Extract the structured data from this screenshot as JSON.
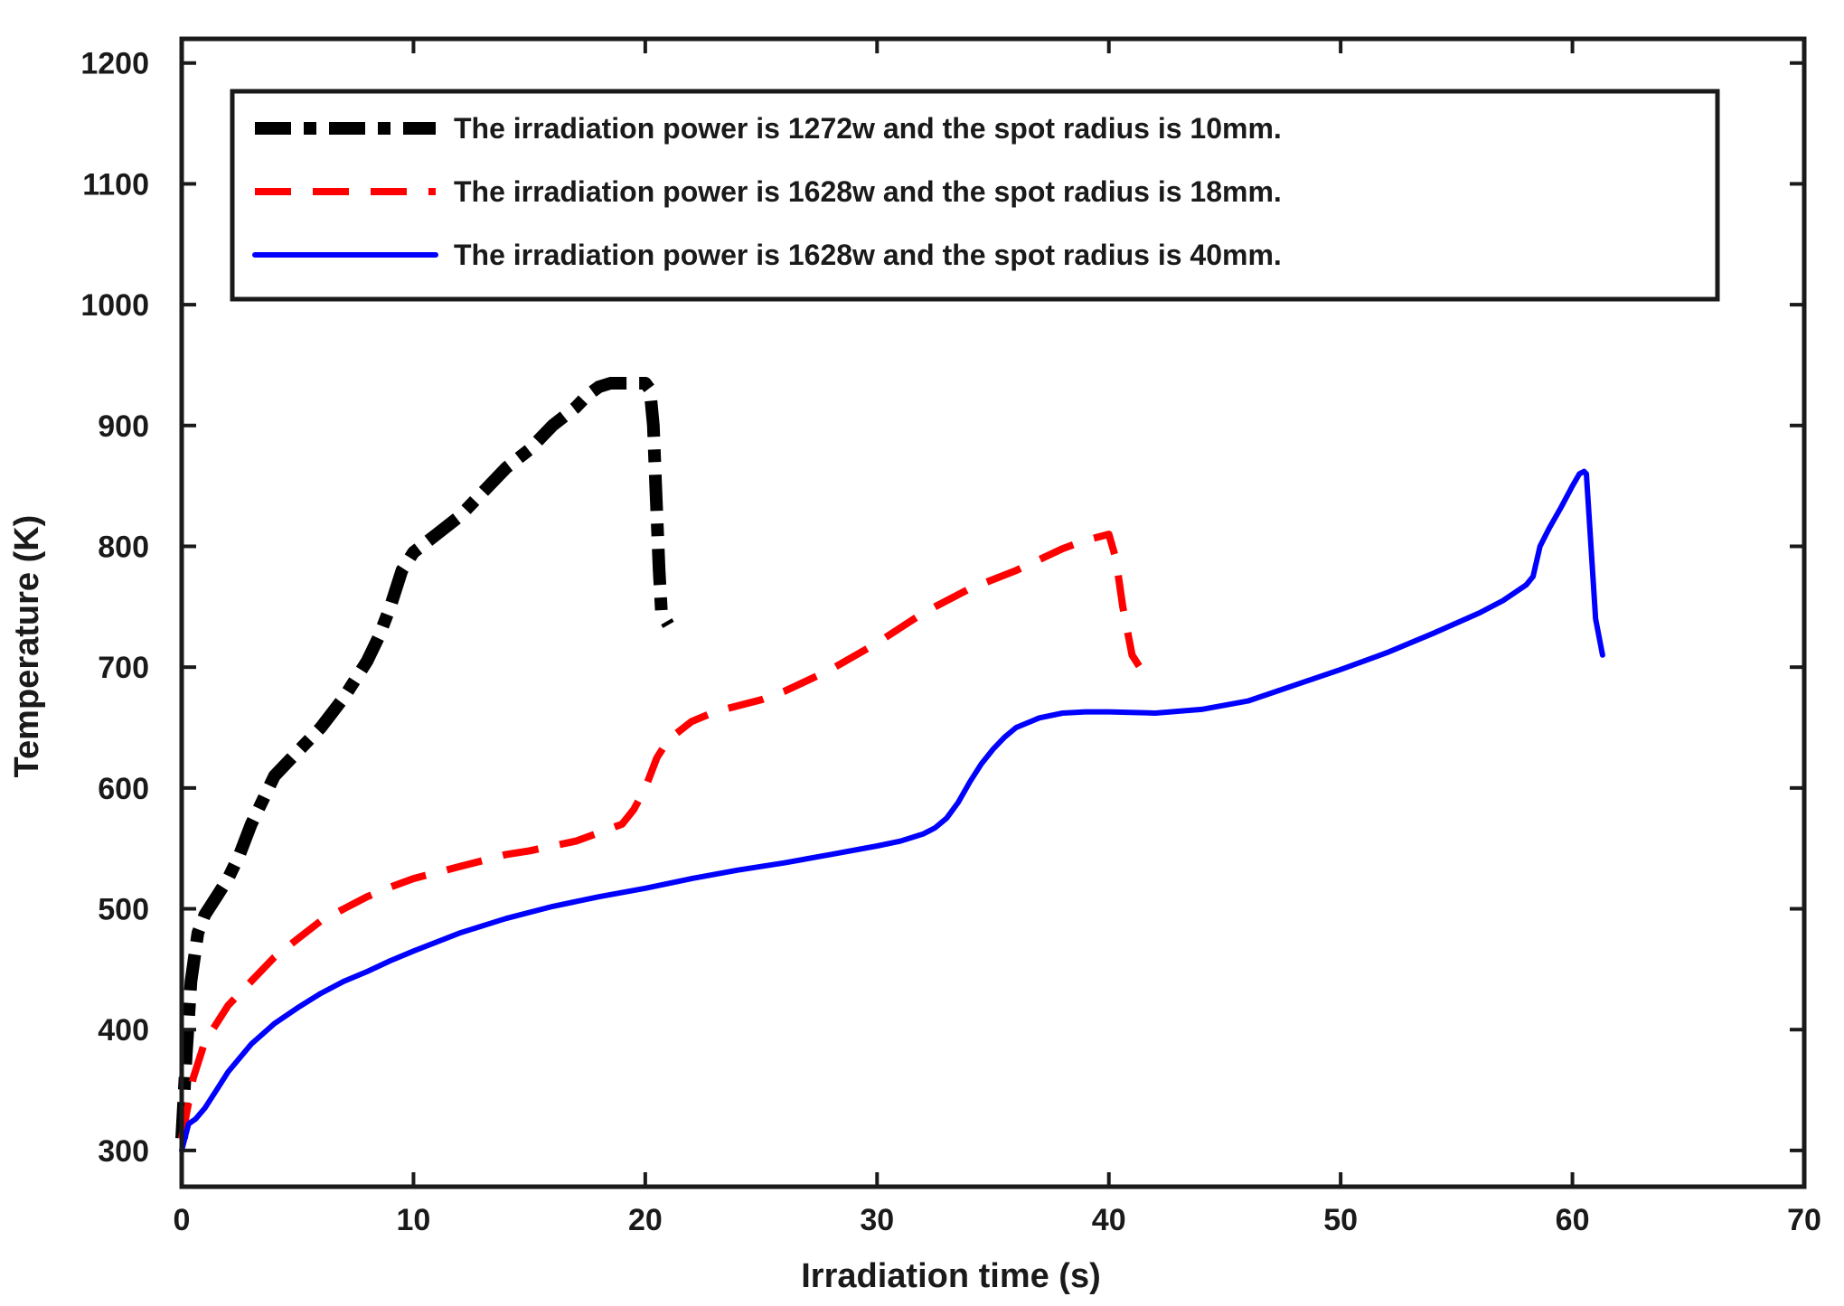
{
  "chart_data": {
    "type": "line",
    "title": "",
    "xlabel": "Irradiation time (s)",
    "ylabel": "Temperature (K)",
    "xlim": [
      0,
      70
    ],
    "ylim": [
      270,
      1220
    ],
    "xticks": [
      0,
      10,
      20,
      30,
      40,
      50,
      60,
      70
    ],
    "yticks": [
      300,
      400,
      500,
      600,
      700,
      800,
      900,
      1000,
      1100,
      1200
    ],
    "grid": false,
    "legend_position": "top",
    "series": [
      {
        "name": "The irradiation power is 1272w and the spot radius is 10mm.",
        "color": "#000000",
        "style": "dash-dot-thick",
        "x": [
          0,
          0.2,
          0.4,
          0.7,
          1.0,
          1.5,
          2.0,
          2.5,
          3.0,
          3.5,
          4.0,
          5.0,
          6.0,
          7.0,
          8.0,
          8.5,
          9.0,
          9.5,
          10.0,
          11.0,
          12.0,
          13.0,
          14.0,
          15.0,
          16.0,
          17.0,
          17.5,
          18.0,
          18.5,
          19.0,
          19.5,
          20.0,
          20.2,
          20.35,
          20.45,
          20.6,
          20.7,
          21.0
        ],
        "y": [
          310,
          380,
          440,
          480,
          495,
          510,
          525,
          545,
          570,
          590,
          610,
          630,
          650,
          675,
          705,
          725,
          750,
          780,
          795,
          810,
          825,
          845,
          865,
          880,
          900,
          915,
          925,
          932,
          935,
          935,
          935,
          935,
          930,
          900,
          850,
          780,
          745,
          735
        ]
      },
      {
        "name": "The irradiation power is 1628w and the spot radius is 18mm.",
        "color": "#ff0000",
        "style": "dashed",
        "x": [
          0,
          0.5,
          1.0,
          2.0,
          3.0,
          4.0,
          5.0,
          6.0,
          7.0,
          8.0,
          9.0,
          10.0,
          11.0,
          12.0,
          13.0,
          14.0,
          15.0,
          16.0,
          17.0,
          18.0,
          19.0,
          19.5,
          20.0,
          20.5,
          21.0,
          22.0,
          23.0,
          24.0,
          25.0,
          26.0,
          28.0,
          30.0,
          32.0,
          34.0,
          36.0,
          38.0,
          39.0,
          40.0,
          40.3,
          40.6,
          41.0,
          41.5,
          42.0
        ],
        "y": [
          310,
          360,
          390,
          420,
          440,
          460,
          475,
          490,
          500,
          510,
          518,
          525,
          530,
          535,
          540,
          545,
          548,
          552,
          556,
          563,
          570,
          582,
          600,
          625,
          640,
          655,
          663,
          668,
          673,
          680,
          698,
          720,
          745,
          765,
          780,
          798,
          805,
          810,
          790,
          750,
          710,
          695,
          690
        ]
      },
      {
        "name": "The irradiation power is 1628w and the spot radius is 40mm.",
        "color": "#0000ff",
        "style": "solid",
        "x": [
          0,
          0.3,
          0.6,
          1.0,
          1.5,
          2.0,
          3.0,
          4.0,
          5.0,
          6.0,
          7.0,
          8.0,
          9.0,
          10.0,
          12.0,
          14.0,
          16.0,
          18.0,
          20.0,
          22.0,
          24.0,
          26.0,
          28.0,
          30.0,
          31.0,
          32.0,
          32.5,
          33.0,
          33.5,
          34.0,
          34.5,
          35.0,
          35.5,
          36.0,
          37.0,
          38.0,
          39.0,
          40.0,
          42.0,
          44.0,
          46.0,
          48.0,
          50.0,
          52.0,
          54.0,
          56.0,
          57.0,
          58.0,
          58.3,
          58.6,
          59.0,
          59.5,
          60.0,
          60.3,
          60.5,
          60.6,
          60.8,
          61.0,
          61.3
        ],
        "y": [
          300,
          322,
          326,
          335,
          350,
          365,
          388,
          405,
          418,
          430,
          440,
          448,
          457,
          465,
          480,
          492,
          502,
          510,
          517,
          525,
          532,
          538,
          545,
          552,
          556,
          562,
          567,
          575,
          588,
          605,
          620,
          632,
          642,
          650,
          658,
          662,
          663,
          663,
          662,
          665,
          672,
          685,
          698,
          712,
          728,
          745,
          755,
          768,
          775,
          800,
          815,
          832,
          850,
          860,
          862,
          860,
          800,
          740,
          710
        ]
      }
    ]
  }
}
